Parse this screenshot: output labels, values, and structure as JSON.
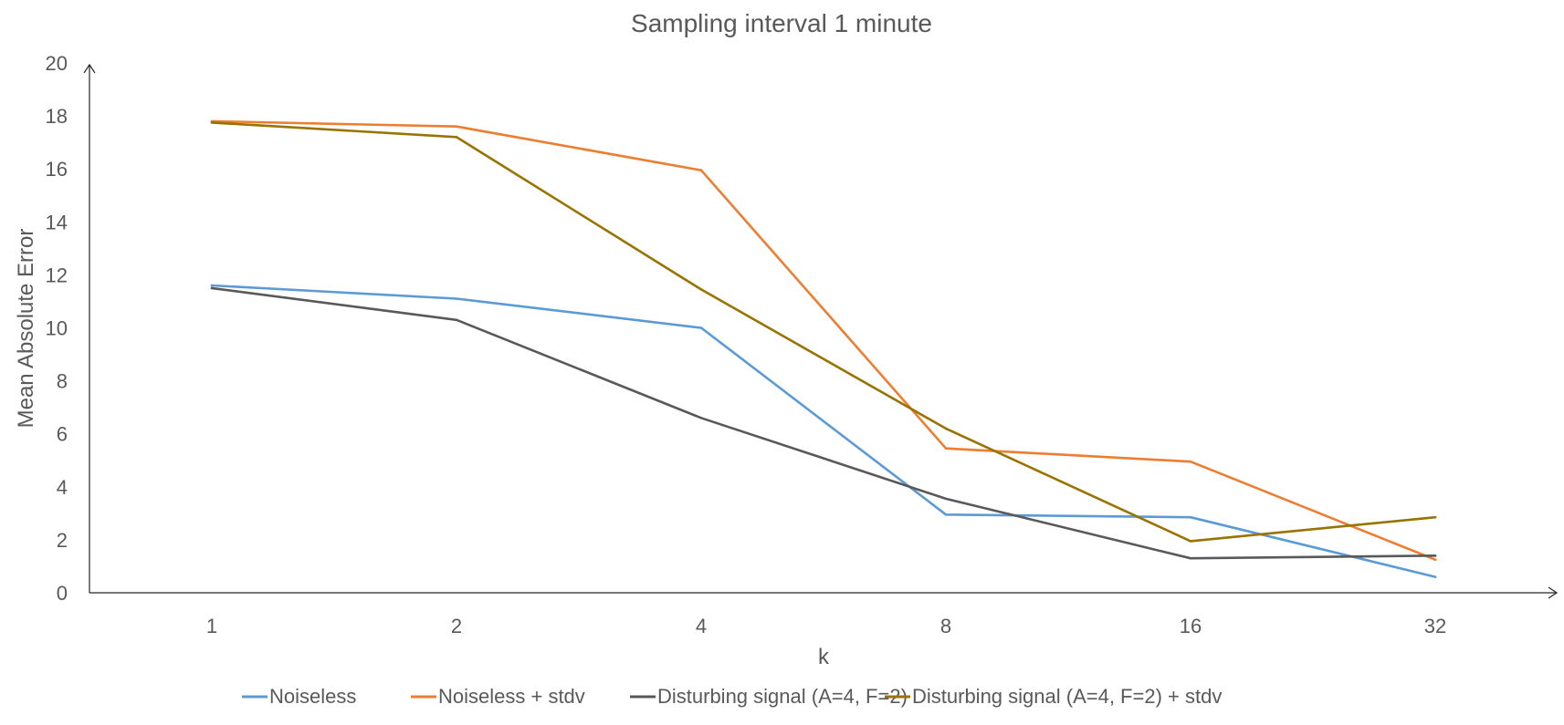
{
  "chart_data": {
    "type": "line",
    "title": "Sampling interval 1 minute",
    "xlabel": "k",
    "ylabel": "Mean Absolute Error",
    "categories": [
      "1",
      "2",
      "4",
      "8",
      "16",
      "32"
    ],
    "yticks": [
      "0",
      "2",
      "4",
      "6",
      "8",
      "10",
      "12",
      "14",
      "16",
      "18",
      "20"
    ],
    "ylim": [
      0,
      20
    ],
    "grid": false,
    "legend_position": "bottom",
    "series": [
      {
        "name": "Noiseless",
        "color": "#5B9BD5",
        "values": [
          11.6,
          11.1,
          10.0,
          2.95,
          2.85,
          0.6
        ]
      },
      {
        "name": "Noiseless + stdv",
        "color": "#ED7D31",
        "values": [
          17.8,
          17.6,
          15.95,
          5.45,
          4.95,
          1.25
        ]
      },
      {
        "name": "Disturbing signal (A=4, F=2)",
        "color": "#595959",
        "values": [
          11.5,
          10.3,
          6.6,
          3.55,
          1.3,
          1.4
        ]
      },
      {
        "name": "Disturbing signal (A=4, F=2) + stdv",
        "color": "#997300",
        "values": [
          17.75,
          17.2,
          11.45,
          6.2,
          1.95,
          2.85
        ]
      }
    ]
  }
}
